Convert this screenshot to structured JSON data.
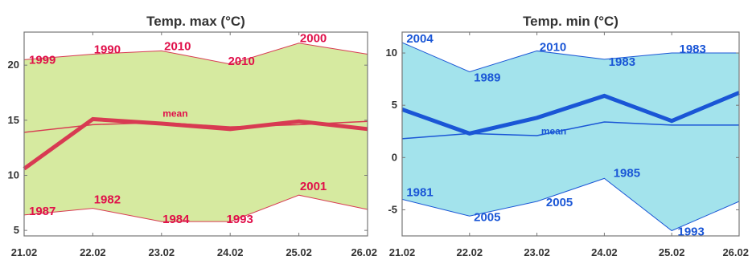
{
  "chart_data": [
    {
      "type": "area",
      "title": "Temp. max (°C)",
      "xlabel": "",
      "ylabel": "",
      "categories": [
        "21.02",
        "22.02",
        "23.02",
        "24.02",
        "25.02",
        "26.02"
      ],
      "xlim": [
        0,
        5
      ],
      "ylim": [
        4.5,
        23
      ],
      "yticks": [
        5,
        10,
        15,
        20
      ],
      "grid": false,
      "colors": {
        "band": "#d6eaa0",
        "line": "#d83a52",
        "text": "#e0104a",
        "frame": "#777777"
      },
      "band_upper": {
        "x": [
          0,
          1,
          2,
          3,
          4,
          5
        ],
        "values": [
          20.5,
          21,
          21.3,
          20.1,
          22,
          21
        ],
        "years": [
          "1999",
          "1990",
          "2010",
          "2010",
          "2000",
          ""
        ]
      },
      "band_lower": {
        "x": [
          0,
          1,
          2,
          3,
          4,
          5
        ],
        "values": [
          6.4,
          7,
          5.8,
          5.8,
          8.2,
          6.9
        ],
        "years": [
          "1987",
          "1982",
          "1984",
          "1993",
          "2001",
          ""
        ]
      },
      "series": [
        {
          "name": "mean",
          "x": [
            0,
            1,
            2,
            3,
            4,
            5
          ],
          "values": [
            13.9,
            14.6,
            14.8,
            14.4,
            14.6,
            14.9
          ]
        },
        {
          "x": [
            0,
            1,
            2,
            3,
            4,
            5
          ],
          "values": [
            10.6,
            15.1,
            14.7,
            14.2,
            14.9,
            14.2
          ]
        }
      ]
    },
    {
      "type": "area",
      "title": "Temp. min (°C)",
      "xlabel": "",
      "ylabel": "",
      "categories": [
        "21.02",
        "22.02",
        "23.02",
        "24.02",
        "25.02",
        "26.02"
      ],
      "xlim": [
        0,
        5
      ],
      "ylim": [
        -7.5,
        12
      ],
      "yticks": [
        -5,
        0,
        5,
        10
      ],
      "grid": false,
      "colors": {
        "band": "#a3e3ec",
        "line": "#1a56d6",
        "text": "#1a56d6",
        "frame": "#777777"
      },
      "band_upper": {
        "x": [
          0,
          1,
          2,
          3,
          4,
          5
        ],
        "values": [
          11,
          8.2,
          10.2,
          9.4,
          10,
          10
        ],
        "years": [
          "2004",
          "1989",
          "2010",
          "1983",
          "1983",
          ""
        ]
      },
      "band_lower": {
        "x": [
          0,
          1,
          2,
          3,
          4,
          5
        ],
        "values": [
          -4,
          -5.6,
          -4.2,
          -2,
          -7,
          -4.2
        ],
        "years": [
          "1981",
          "2005",
          "2005",
          "1985",
          "1993",
          ""
        ]
      },
      "series": [
        {
          "name": "mean",
          "x": [
            0,
            1,
            2,
            3,
            4,
            5
          ],
          "values": [
            1.8,
            2.3,
            2.1,
            3.4,
            3.1,
            3.1
          ]
        },
        {
          "x": [
            0,
            1,
            2,
            3,
            4,
            5
          ],
          "values": [
            4.6,
            2.3,
            3.8,
            5.9,
            3.5,
            6.2
          ]
        }
      ]
    }
  ]
}
